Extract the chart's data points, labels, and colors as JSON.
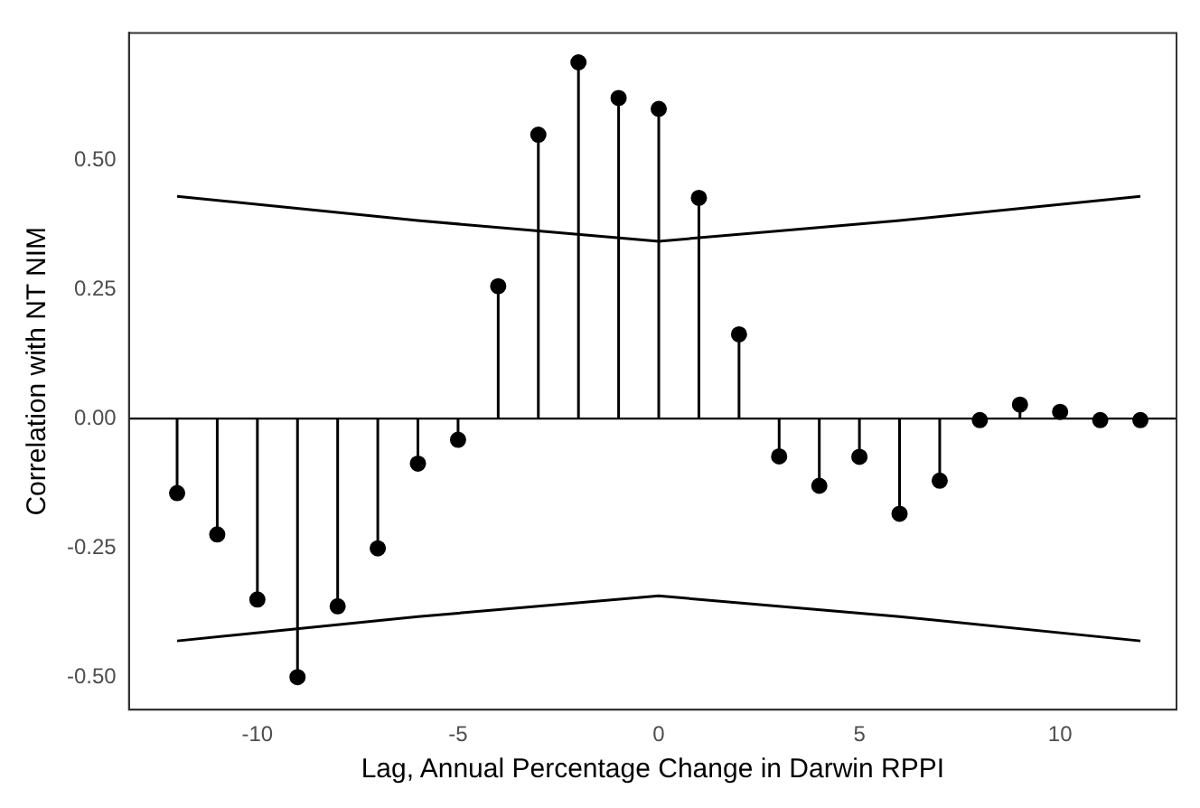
{
  "chart_data": {
    "type": "lollipop",
    "xlabel": "Lag, Annual Percentage Change in Darwin RPPI",
    "ylabel": "Correlation with NT NIM",
    "xlim": [
      -13.2,
      12.9
    ],
    "ylim": [
      -0.563,
      0.746
    ],
    "xticks": [
      -10,
      -5,
      0,
      5,
      10
    ],
    "yticks": [
      {
        "value": -0.5,
        "label": "-0.50"
      },
      {
        "value": -0.25,
        "label": "-0.25"
      },
      {
        "value": 0,
        "label": "0.00"
      },
      {
        "value": 0.25,
        "label": "0.25"
      },
      {
        "value": 0.5,
        "label": "0.50"
      }
    ],
    "grid": false,
    "legend": false,
    "marker": "circle",
    "ref_lines": [
      {
        "axis": "y",
        "value": 0,
        "color": "#000000"
      }
    ],
    "series": [
      {
        "type": "lollipop",
        "color": "#000000",
        "x": [
          -12,
          -11,
          -10,
          -9,
          -8,
          -7,
          -6,
          -5,
          -4,
          -3,
          -2,
          -1,
          0,
          1,
          2,
          3,
          4,
          5,
          6,
          7,
          8,
          9,
          10,
          11,
          12
        ],
        "values": [
          -0.144,
          -0.224,
          -0.35,
          -0.5,
          -0.363,
          -0.251,
          -0.087,
          -0.041,
          0.256,
          0.549,
          0.689,
          0.62,
          0.599,
          0.427,
          0.163,
          -0.073,
          -0.13,
          -0.074,
          -0.184,
          -0.12,
          -0.003,
          0.027,
          0.013,
          -0.003,
          -0.003
        ]
      },
      {
        "type": "line",
        "color": "#000000",
        "marker": "none",
        "line_style": "solid",
        "x": [
          -12,
          -6,
          0,
          6,
          12
        ],
        "values": [
          0.43,
          0.383,
          0.343,
          0.383,
          0.43
        ]
      },
      {
        "type": "line",
        "color": "#000000",
        "marker": "none",
        "line_style": "solid",
        "x": [
          -12,
          -6,
          0,
          6,
          12
        ],
        "values": [
          -0.43,
          -0.383,
          -0.343,
          -0.383,
          -0.43
        ]
      }
    ]
  }
}
